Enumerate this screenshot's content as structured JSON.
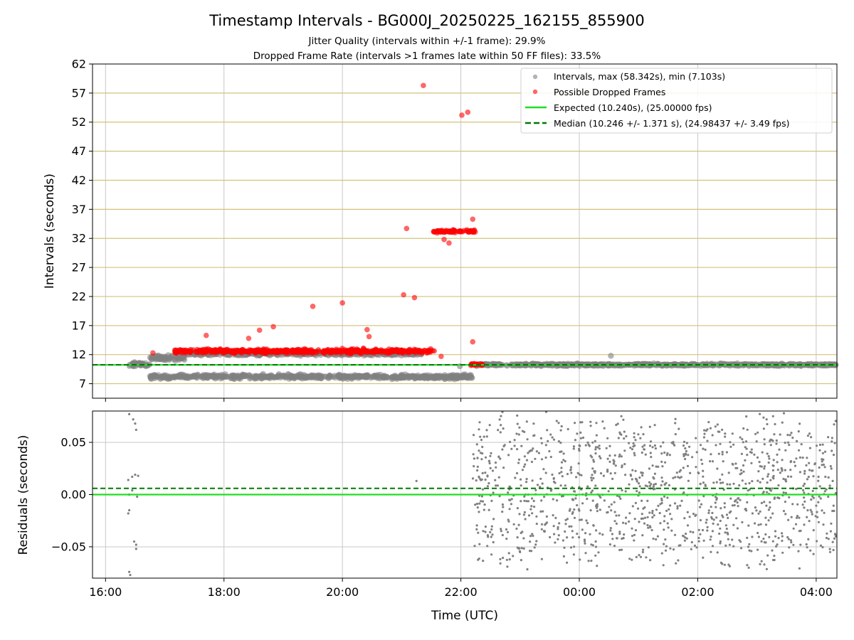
{
  "title": "Timestamp Intervals - BG000J_20250225_162155_855900",
  "subtitle_1": "Jitter Quality (intervals within +/-1 frame): 29.9%",
  "subtitle_2": "Dropped Frame Rate (intervals >1 frames late within 50 FF files): 33.5%",
  "colors": {
    "intervals": "#808080",
    "dropped": "#ff0000",
    "expected": "#22dd22",
    "median": "#007a00",
    "hgrid_top": "#d4c27a",
    "vgrid": "#c8c8c8"
  },
  "chart_data": [
    {
      "type": "scatter",
      "panel": "intervals",
      "ylabel": "Intervals (seconds)",
      "xlabel": "",
      "x_tick_labels": [
        "16:00",
        "18:00",
        "20:00",
        "22:00",
        "00:00",
        "02:00",
        "04:00"
      ],
      "x_ticks_hours": [
        16,
        18,
        20,
        22,
        24,
        26,
        28
      ],
      "x_range_hours": [
        15.78,
        28.35
      ],
      "y_ticks": [
        7,
        12,
        17,
        22,
        27,
        32,
        37,
        42,
        47,
        52,
        57,
        62
      ],
      "ylim": [
        4.5,
        62
      ],
      "grid": true,
      "legend_position": "top-right",
      "legend": [
        "Intervals, max (58.342s), min (7.103s)",
        "Possible Dropped Frames",
        "Expected (10.240s), (25.00000 fps)",
        "Median (10.246 +/- 1.371 s), (24.98437 +/- 3.49 fps)"
      ],
      "expected_value": 10.24,
      "median_value": 10.246,
      "series": [
        {
          "name": "Intervals, max (58.342s), min (7.103s)",
          "regions": [
            {
              "x_start": "16:22",
              "x_end": "16:45",
              "y_center": 10.3,
              "y_spread": 0.6
            },
            {
              "x_start": "16:45",
              "x_end": "22:12",
              "y_center": 8.2,
              "y_spread": 0.6
            },
            {
              "x_start": "16:45",
              "x_end": "17:20",
              "y_center": 11.4,
              "y_spread": 0.7
            },
            {
              "x_start": "17:20",
              "x_end": "21:20",
              "y_center": 12.2,
              "y_spread": 0.6
            },
            {
              "x_start": "22:12",
              "x_end": "04:20",
              "y_center": 10.25,
              "y_spread": 0.3
            }
          ],
          "outliers": [
            {
              "x": "00:32",
              "y": 11.8
            },
            {
              "x": "21:59",
              "y": 10.0
            }
          ]
        },
        {
          "name": "Possible Dropped Frames",
          "regions": [
            {
              "x_start": "17:10",
              "x_end": "21:35",
              "y_center": 12.6,
              "y_spread": 0.6
            },
            {
              "x_start": "21:32",
              "x_end": "22:15",
              "y_center": 33.2,
              "y_spread": 0.4
            },
            {
              "x_start": "22:10",
              "x_end": "22:22",
              "y_center": 10.3,
              "y_spread": 0.25
            }
          ],
          "points": [
            {
              "x": "16:48",
              "y": 12.3
            },
            {
              "x": "17:42",
              "y": 15.3
            },
            {
              "x": "18:25",
              "y": 14.8
            },
            {
              "x": "18:36",
              "y": 16.2
            },
            {
              "x": "18:50",
              "y": 16.8
            },
            {
              "x": "19:30",
              "y": 20.3
            },
            {
              "x": "20:00",
              "y": 20.9
            },
            {
              "x": "20:25",
              "y": 16.3
            },
            {
              "x": "20:27",
              "y": 15.1
            },
            {
              "x": "21:05",
              "y": 33.7
            },
            {
              "x": "21:02",
              "y": 22.3
            },
            {
              "x": "21:13",
              "y": 21.8
            },
            {
              "x": "21:22",
              "y": 58.3
            },
            {
              "x": "21:43",
              "y": 31.8
            },
            {
              "x": "21:48",
              "y": 31.2
            },
            {
              "x": "22:01",
              "y": 53.2
            },
            {
              "x": "22:07",
              "y": 53.7
            },
            {
              "x": "22:12",
              "y": 35.3
            },
            {
              "x": "22:12",
              "y": 14.2
            },
            {
              "x": "21:40",
              "y": 11.7
            }
          ]
        }
      ]
    },
    {
      "type": "scatter",
      "panel": "residuals",
      "ylabel": "Residuals (seconds)",
      "xlabel": "Time (UTC)",
      "x_tick_labels": [
        "16:00",
        "18:00",
        "20:00",
        "22:00",
        "00:00",
        "02:00",
        "04:00"
      ],
      "x_ticks_hours": [
        16,
        18,
        20,
        22,
        24,
        26,
        28
      ],
      "x_range_hours": [
        15.78,
        28.35
      ],
      "y_tick_labels": [
        "−0.05",
        "0.00",
        "0.05"
      ],
      "y_ticks": [
        -0.05,
        0.0,
        0.05
      ],
      "ylim": [
        -0.08,
        0.08
      ],
      "grid": true,
      "expected_value": 0.0,
      "median_value": 0.006,
      "series": [
        {
          "name": "",
          "regions": [
            {
              "x_start": "22:12",
              "x_end": "04:20",
              "y_center": 0.005,
              "y_spread": 0.08
            }
          ],
          "points": [
            {
              "x": "16:24",
              "y": 0.077
            },
            {
              "x": "16:28",
              "y": 0.072
            },
            {
              "x": "16:30",
              "y": 0.068
            },
            {
              "x": "16:31",
              "y": 0.062
            },
            {
              "x": "16:23",
              "y": 0.014
            },
            {
              "x": "16:27",
              "y": 0.017
            },
            {
              "x": "16:30",
              "y": 0.019
            },
            {
              "x": "16:33",
              "y": 0.018
            },
            {
              "x": "16:24",
              "y": 0.0
            },
            {
              "x": "16:27",
              "y": 0.004
            },
            {
              "x": "16:32",
              "y": -0.002
            },
            {
              "x": "16:24",
              "y": -0.015
            },
            {
              "x": "16:23",
              "y": -0.018
            },
            {
              "x": "16:29",
              "y": -0.045
            },
            {
              "x": "16:31",
              "y": -0.048
            },
            {
              "x": "16:31",
              "y": -0.052
            },
            {
              "x": "16:24",
              "y": -0.074
            },
            {
              "x": "16:25",
              "y": -0.077
            },
            {
              "x": "21:15",
              "y": 0.013
            }
          ]
        }
      ]
    }
  ]
}
